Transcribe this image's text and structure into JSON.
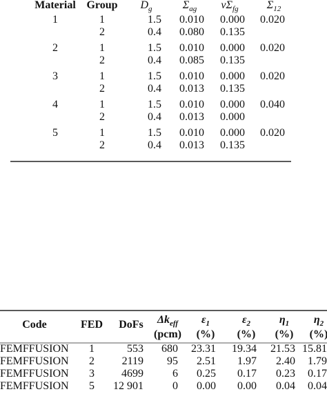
{
  "table1": {
    "headers": {
      "material": "Material",
      "group": "Group",
      "diffusion": {
        "symbol": "D",
        "sub": "g"
      },
      "absorption": {
        "symbol": "Σ",
        "sub": "ag"
      },
      "fission": {
        "symbol": "νΣ",
        "sub": "fg"
      },
      "scattering": {
        "symbol": "Σ",
        "sub": "12"
      }
    },
    "materials": [
      {
        "material": "1",
        "scattering": "0.020",
        "groups": [
          {
            "group": "1",
            "diffusion": "1.5",
            "absorption": "0.010",
            "fission": "0.000"
          },
          {
            "group": "2",
            "diffusion": "0.4",
            "absorption": "0.080",
            "fission": "0.135"
          }
        ]
      },
      {
        "material": "2",
        "scattering": "0.020",
        "groups": [
          {
            "group": "1",
            "diffusion": "1.5",
            "absorption": "0.010",
            "fission": "0.000"
          },
          {
            "group": "2",
            "diffusion": "0.4",
            "absorption": "0.085",
            "fission": "0.135"
          }
        ]
      },
      {
        "material": "3",
        "scattering": "0.020",
        "groups": [
          {
            "group": "1",
            "diffusion": "1.5",
            "absorption": "0.010",
            "fission": "0.000"
          },
          {
            "group": "2",
            "diffusion": "0.4",
            "absorption": "0.013",
            "fission": "0.135"
          }
        ]
      },
      {
        "material": "4",
        "scattering": "0.040",
        "groups": [
          {
            "group": "1",
            "diffusion": "1.5",
            "absorption": "0.010",
            "fission": "0.000"
          },
          {
            "group": "2",
            "diffusion": "0.4",
            "absorption": "0.013",
            "fission": "0.000"
          }
        ]
      },
      {
        "material": "5",
        "scattering": "0.020",
        "groups": [
          {
            "group": "1",
            "diffusion": "1.5",
            "absorption": "0.010",
            "fission": "0.000"
          },
          {
            "group": "2",
            "diffusion": "0.4",
            "absorption": "0.013",
            "fission": "0.135"
          }
        ]
      }
    ]
  },
  "table2": {
    "headers": [
      {
        "text": "Code"
      },
      {
        "text": "FED"
      },
      {
        "text": "DoFs"
      },
      {
        "symbol": "Δk",
        "sub": "eff",
        "unit": "(pcm)"
      },
      {
        "symbol": "ε",
        "sub": "1",
        "unit": "(%)"
      },
      {
        "symbol": "ε",
        "sub": "2",
        "unit": "(%)"
      },
      {
        "symbol": "η",
        "sub": "1",
        "unit": "(%)"
      },
      {
        "symbol": "η",
        "sub": "2",
        "unit": "(%)"
      }
    ],
    "rows": [
      [
        "FEMFFUSION",
        "1",
        "553",
        "680",
        "23.31",
        "19.34",
        "21.53",
        "15.81"
      ],
      [
        "FEMFFUSION",
        "2",
        "2119",
        "95",
        "2.51",
        "1.97",
        "2.40",
        "1.79"
      ],
      [
        "FEMFFUSION",
        "3",
        "4699",
        "6",
        "0.25",
        "0.17",
        "0.23",
        "0.17"
      ],
      [
        "FEMFFUSION",
        "5",
        "12 901",
        "0",
        "0.00",
        "0.00",
        "0.04",
        "0.04"
      ]
    ]
  }
}
